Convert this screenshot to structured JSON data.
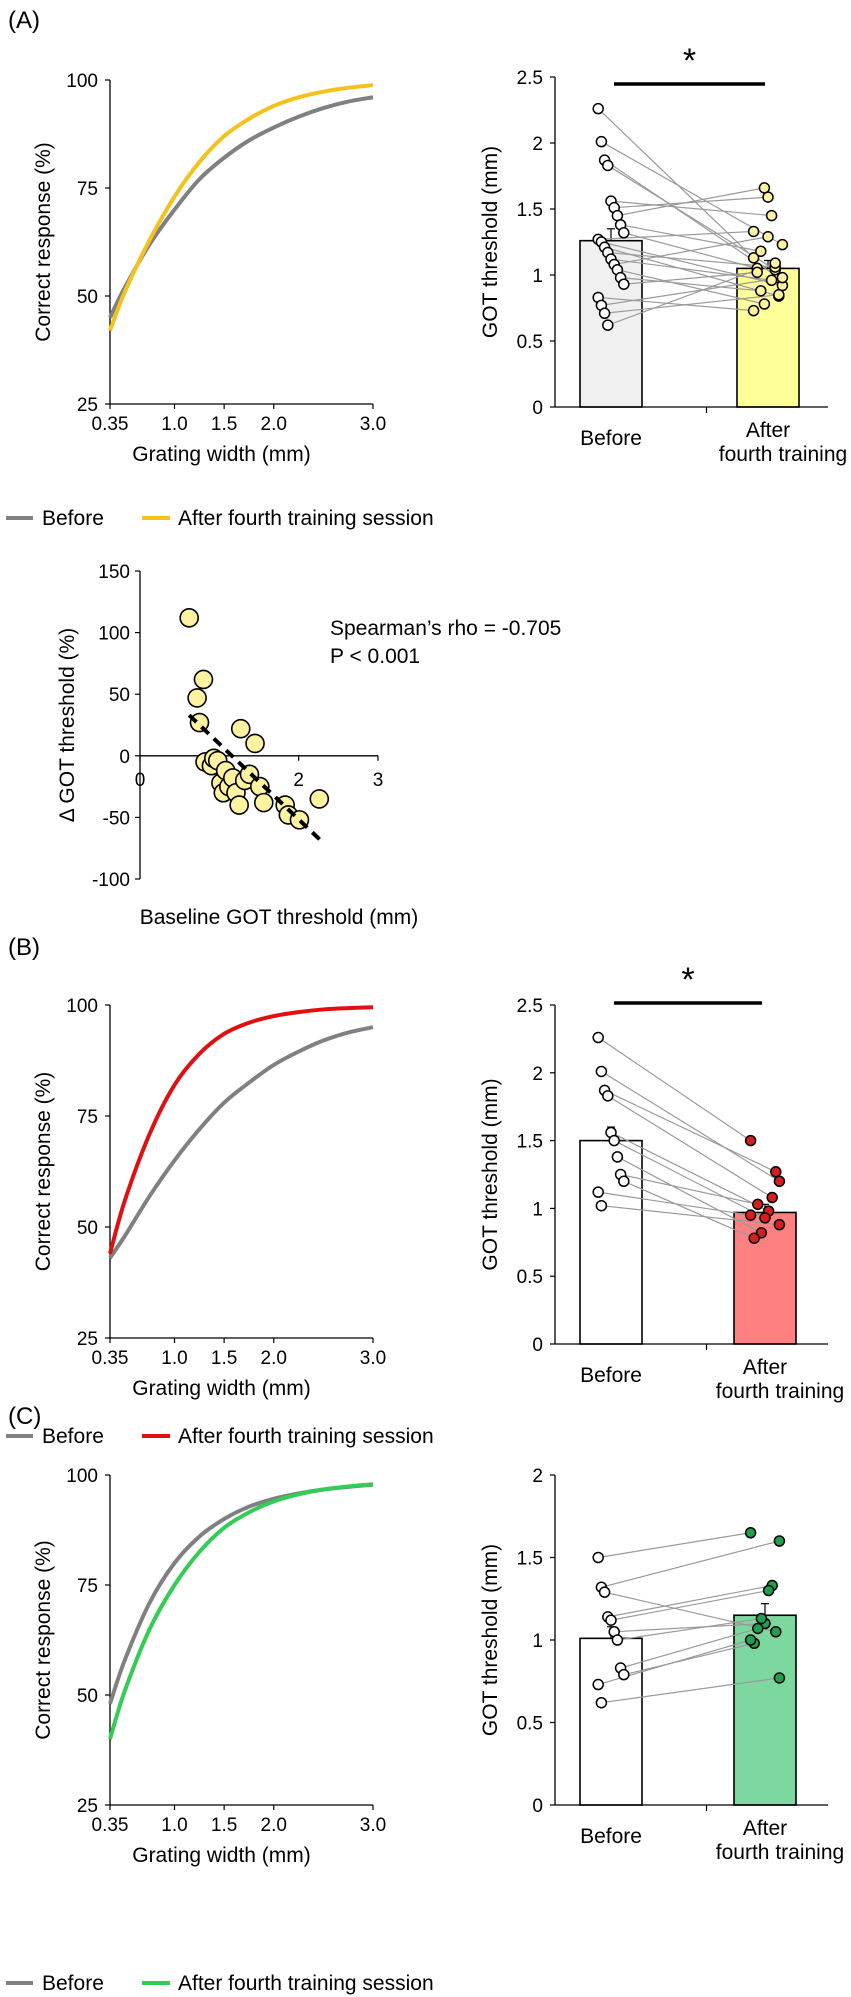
{
  "chart_data": [
    {
      "panel": "(A)",
      "type": "line",
      "xlabel": "Grating width (mm)",
      "ylabel": "Correct response (%)",
      "xticks": [
        "0.35",
        "1.0",
        "1.5",
        "2.0",
        "3.0"
      ],
      "yticks": [
        "25",
        "50",
        "75",
        "100"
      ],
      "xlim": [
        0.35,
        3.0
      ],
      "ylim": [
        25,
        100
      ],
      "series": [
        {
          "name": "Before",
          "color": "#808080",
          "x": [
            0.35,
            0.5,
            0.75,
            1.0,
            1.25,
            1.5,
            1.75,
            2.0,
            2.25,
            2.5,
            2.75,
            3.0
          ],
          "y": [
            45,
            52,
            62,
            70,
            77,
            82,
            86,
            89,
            91.5,
            93.5,
            95,
            96
          ]
        },
        {
          "name": "After fourth training session",
          "color": "#f5c21b",
          "x": [
            0.35,
            0.5,
            0.75,
            1.0,
            1.25,
            1.5,
            1.75,
            2.0,
            2.25,
            2.5,
            2.75,
            3.0
          ],
          "y": [
            42,
            51,
            63,
            73,
            81,
            87,
            91,
            94,
            96,
            97.3,
            98.2,
            98.8
          ]
        }
      ],
      "legend": [
        "Before",
        "After fourth training session"
      ]
    },
    {
      "panel": "(A)",
      "type": "bar",
      "ylabel": "GOT threshold (mm)",
      "categories": [
        "Before",
        "After fourth training"
      ],
      "values": [
        1.26,
        1.05
      ],
      "errors": [
        0.09,
        0.06
      ],
      "bar_colors": [
        "#f0f0f0",
        "#ffff99"
      ],
      "point_color_after": "#fff2a0",
      "ylim": [
        0,
        2.5
      ],
      "yticks": [
        "0",
        "0.5",
        "1",
        "1.5",
        "2",
        "2.5"
      ],
      "significance": "*",
      "paired_points": [
        [
          2.26,
          1.13
        ],
        [
          2.01,
          1.23
        ],
        [
          1.87,
          0.98
        ],
        [
          1.83,
          1.04
        ],
        [
          1.56,
          1.45
        ],
        [
          1.51,
          1.59
        ],
        [
          1.45,
          1.66
        ],
        [
          1.38,
          1.18
        ],
        [
          1.32,
          1.05
        ],
        [
          1.27,
          1.33
        ],
        [
          1.25,
          0.92
        ],
        [
          1.21,
          0.84
        ],
        [
          1.17,
          1.06
        ],
        [
          1.12,
          0.96
        ],
        [
          1.08,
          1.29
        ],
        [
          1.04,
          0.78
        ],
        [
          0.98,
          0.88
        ],
        [
          0.93,
          1.02
        ],
        [
          0.83,
          0.73
        ],
        [
          0.77,
          0.98
        ],
        [
          0.71,
          0.85
        ],
        [
          0.62,
          1.09
        ]
      ]
    },
    {
      "panel": "(A)",
      "type": "scatter",
      "xlabel": "Baseline GOT threshold (mm)",
      "ylabel": "Δ GOT threshold (%)",
      "xlim": [
        0,
        3
      ],
      "ylim": [
        -100,
        150
      ],
      "xticks": [
        "0",
        "1",
        "2",
        "3"
      ],
      "yticks": [
        "-100",
        "-50",
        "0",
        "50",
        "100",
        "150"
      ],
      "annotation": [
        "Spearman’s rho = -0.705",
        "P < 0.001"
      ],
      "trend": [
        [
          0.62,
          33
        ],
        [
          2.3,
          -70
        ]
      ],
      "x": [
        0.62,
        0.72,
        0.75,
        0.8,
        0.82,
        0.9,
        0.93,
        0.98,
        1.02,
        1.05,
        1.08,
        1.12,
        1.17,
        1.21,
        1.25,
        1.27,
        1.32,
        1.38,
        1.45,
        1.51,
        1.56,
        1.83,
        1.87,
        2.01,
        2.26
      ],
      "y": [
        112,
        47,
        27,
        62,
        -5,
        -8,
        -2,
        -4,
        -22,
        -30,
        -12,
        -25,
        -18,
        -30,
        -40,
        22,
        -20,
        -15,
        10,
        -25,
        -38,
        -40,
        -48,
        -52,
        -35
      ]
    },
    {
      "panel": "(B)",
      "type": "line",
      "xlabel": "Grating width (mm)",
      "ylabel": "Correct response (%)",
      "xticks": [
        "0.35",
        "1.0",
        "1.5",
        "2.0",
        "3.0"
      ],
      "yticks": [
        "25",
        "50",
        "75",
        "100"
      ],
      "xlim": [
        0.35,
        3.0
      ],
      "ylim": [
        25,
        100
      ],
      "series": [
        {
          "name": "Before",
          "color": "#808080",
          "x": [
            0.35,
            0.5,
            0.75,
            1.0,
            1.25,
            1.5,
            1.75,
            2.0,
            2.25,
            2.5,
            2.75,
            3.0
          ],
          "y": [
            43,
            48,
            57,
            65,
            72,
            78,
            82.5,
            86.5,
            89.5,
            92,
            93.8,
            95
          ]
        },
        {
          "name": "After fourth training session",
          "color": "#e01010",
          "x": [
            0.35,
            0.5,
            0.75,
            1.0,
            1.25,
            1.5,
            1.75,
            2.0,
            2.25,
            2.5,
            2.75,
            3.0
          ],
          "y": [
            44,
            56,
            71,
            82,
            89,
            93.5,
            96,
            97.5,
            98.4,
            99,
            99.3,
            99.5
          ]
        }
      ],
      "legend": [
        "Before",
        "After fourth training session"
      ]
    },
    {
      "panel": "(B)",
      "type": "bar",
      "ylabel": "GOT threshold (mm)",
      "categories": [
        "Before",
        "After fourth training"
      ],
      "values": [
        1.5,
        0.97
      ],
      "errors": [
        0.1,
        0.06
      ],
      "bar_colors": [
        "#ffffff",
        "#ff8080"
      ],
      "point_color_after": "#d61e1e",
      "ylim": [
        0,
        2.5
      ],
      "yticks": [
        "0",
        "0.5",
        "1",
        "1.5",
        "2",
        "2.5"
      ],
      "significance": "*",
      "paired_points": [
        [
          2.26,
          1.5
        ],
        [
          2.01,
          1.2
        ],
        [
          1.87,
          1.27
        ],
        [
          1.83,
          1.08
        ],
        [
          1.56,
          0.98
        ],
        [
          1.5,
          0.93
        ],
        [
          1.38,
          0.82
        ],
        [
          1.25,
          1.03
        ],
        [
          1.2,
          0.78
        ],
        [
          1.12,
          0.95
        ],
        [
          1.02,
          0.88
        ]
      ]
    },
    {
      "panel": "(C)",
      "type": "line",
      "xlabel": "Grating width (mm)",
      "ylabel": "Correct response (%)",
      "xticks": [
        "0.35",
        "1.0",
        "1.5",
        "2.0",
        "3.0"
      ],
      "yticks": [
        "25",
        "50",
        "75",
        "100"
      ],
      "xlim": [
        0.35,
        3.0
      ],
      "ylim": [
        25,
        100
      ],
      "series": [
        {
          "name": "Before",
          "color": "#808080",
          "x": [
            0.35,
            0.5,
            0.75,
            1.0,
            1.25,
            1.5,
            1.75,
            2.0,
            2.25,
            2.5,
            2.75,
            3.0
          ],
          "y": [
            48,
            58,
            71,
            80,
            86,
            90,
            92.8,
            94.6,
            95.8,
            96.7,
            97.3,
            97.8
          ]
        },
        {
          "name": "After fourth training session",
          "color": "#33cc55",
          "x": [
            0.35,
            0.5,
            0.75,
            1.0,
            1.25,
            1.5,
            1.75,
            2.0,
            2.25,
            2.5,
            2.75,
            3.0
          ],
          "y": [
            40,
            51,
            65,
            75,
            82.5,
            88,
            91.5,
            94,
            95.6,
            96.7,
            97.4,
            97.9
          ]
        }
      ],
      "legend": [
        "Before",
        "After fourth training session"
      ]
    },
    {
      "panel": "(C)",
      "type": "bar",
      "ylabel": "GOT threshold (mm)",
      "categories": [
        "Before",
        "After fourth training"
      ],
      "values": [
        1.01,
        1.15
      ],
      "errors": [
        0.07,
        0.07
      ],
      "bar_colors": [
        "#ffffff",
        "#7dd8a0"
      ],
      "point_color_after": "#1fa050",
      "ylim": [
        0,
        2
      ],
      "yticks": [
        "0",
        "0.5",
        "1",
        "1.5",
        "2"
      ],
      "significance": "",
      "paired_points": [
        [
          1.5,
          1.65
        ],
        [
          1.32,
          1.6
        ],
        [
          1.29,
          1.05
        ],
        [
          1.14,
          1.33
        ],
        [
          1.12,
          1.3
        ],
        [
          1.05,
          1.1
        ],
        [
          1.0,
          1.13
        ],
        [
          0.83,
          1.07
        ],
        [
          0.79,
          0.98
        ],
        [
          0.73,
          1.0
        ],
        [
          0.62,
          0.77
        ]
      ]
    }
  ]
}
